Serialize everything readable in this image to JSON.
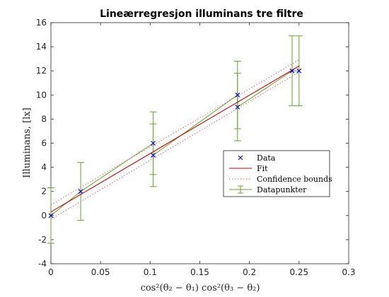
{
  "chart_data": {
    "type": "scatter",
    "title": "Lineærregresjon illuminans tre filtre",
    "xlabel": "cos²(θ₂ − θ₁) cos²(θ₃ − θ₂)",
    "ylabel": "Illuminans, [lx]",
    "xlim": [
      0,
      0.3
    ],
    "ylim": [
      -4,
      16
    ],
    "xticks": [
      0,
      0.05,
      0.1,
      0.15,
      0.2,
      0.25,
      0.3
    ],
    "xtick_labels": [
      "0",
      "0.05",
      "0.1",
      "0.15",
      "0.2",
      "0.25",
      "0.3"
    ],
    "yticks": [
      -4,
      -2,
      0,
      2,
      4,
      6,
      8,
      10,
      12,
      14,
      16
    ],
    "ytick_labels": [
      "-4",
      "-2",
      "0",
      "2",
      "4",
      "6",
      "8",
      "10",
      "12",
      "14",
      "16"
    ],
    "grid": false,
    "legend_position": "center-right",
    "series": [
      {
        "name": "Data",
        "kind": "markers",
        "color": "#0000cc",
        "x": [
          0,
          0.03,
          0.103,
          0.103,
          0.188,
          0.188,
          0.243,
          0.25
        ],
        "y": [
          0,
          2,
          6,
          5,
          10,
          9,
          12,
          12
        ]
      },
      {
        "name": "Fit",
        "kind": "line",
        "color": "#cc0000",
        "x": [
          0,
          0.25
        ],
        "y": [
          0.3,
          12.4
        ]
      },
      {
        "name": "Confidence bounds",
        "kind": "dotted-lines",
        "color": "#e06060",
        "upper": {
          "x": [
            0,
            0.25
          ],
          "y": [
            0.9,
            12.9
          ]
        },
        "lower": {
          "x": [
            0,
            0.25
          ],
          "y": [
            -0.3,
            11.9
          ]
        }
      },
      {
        "name": "Datapunkter",
        "kind": "errorbar",
        "color": "#66a032",
        "x": [
          0,
          0.03,
          0.103,
          0.103,
          0.188,
          0.188,
          0.243,
          0.25
        ],
        "y": [
          0,
          2,
          6,
          5,
          10,
          9,
          12,
          12
        ],
        "err": [
          2.3,
          2.4,
          2.6,
          2.6,
          2.8,
          2.8,
          2.9,
          2.9
        ]
      }
    ]
  }
}
